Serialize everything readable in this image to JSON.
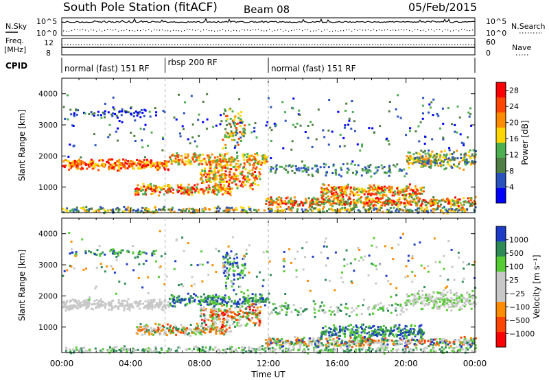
{
  "header": {
    "station": "South Pole Station (fitACF)",
    "beam": "Beam 08",
    "date": "05/Feb/2015"
  },
  "top_panels": {
    "nsky_label": "N.Sky",
    "nsearch_label": "N.Search",
    "freq_label_1": "Freq.",
    "freq_label_2": "[MHz]",
    "nave_label": "Nave",
    "cpid_label": "CPID",
    "nsky_ticks": [
      "10^5",
      "10^0"
    ],
    "nsearch_ticks": [
      "10^5",
      "10^0"
    ],
    "freq_ticks": [
      "12",
      "8"
    ],
    "nave_ticks": [
      "60",
      "0"
    ]
  },
  "cpid_segments": [
    {
      "label": "normal (fast) 151 RF",
      "start": 0,
      "end": 6
    },
    {
      "label": "rbsp 200 RF",
      "start": 6,
      "end": 12
    },
    {
      "label": "normal (fast) 151 RF",
      "start": 12,
      "end": 24
    }
  ],
  "colors": {
    "power": [
      "#0000ff",
      "#2a52be",
      "#4f7f44",
      "#4caf50",
      "#ffd700",
      "#ff8c00",
      "#ff4500",
      "#ff0000"
    ],
    "velocity": [
      "#ff0000",
      "#ff4500",
      "#ff8c00",
      "#c8c8c8",
      "#c8c8c8",
      "#55cc33",
      "#2e8b57",
      "#1e3cc8"
    ]
  },
  "chart_data": [
    {
      "type": "heatmap",
      "title": "Power",
      "ylabel": "Slant Range [km]",
      "xlim": [
        0,
        24
      ],
      "ylim": [
        180,
        4500
      ],
      "x_ticks": [
        0,
        4,
        8,
        12,
        16,
        20,
        24
      ],
      "y_ticks": [
        "1000",
        "2000",
        "3000",
        "4000"
      ],
      "colorbar": {
        "label": "Power [dB]",
        "ticks": [
          "4",
          "8",
          "12",
          "16",
          "20",
          "24",
          "28"
        ],
        "range": [
          0,
          30
        ]
      }
    },
    {
      "type": "heatmap",
      "title": "Velocity",
      "ylabel": "Slant Range [km]",
      "xlabel": "Time UT",
      "xlim": [
        0,
        24
      ],
      "ylim": [
        180,
        4500
      ],
      "x_tick_labels": [
        "00:00",
        "04:00",
        "08:00",
        "12:00",
        "16:00",
        "20:00",
        "00:00"
      ],
      "y_ticks": [
        "1000",
        "2000",
        "3000",
        "4000"
      ],
      "colorbar": {
        "label": "Velocity [m s⁻¹]",
        "ticks": [
          "1000",
          "500",
          "100",
          "25",
          "−25",
          "−100",
          "−500",
          "−1000"
        ]
      }
    }
  ]
}
